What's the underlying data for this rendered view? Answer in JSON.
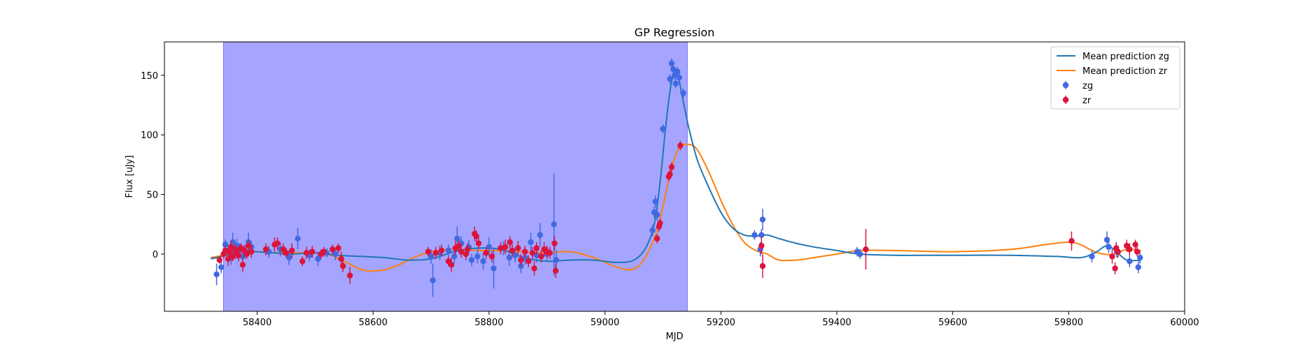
{
  "chart_data": {
    "type": "scatter",
    "title": "GP Regression",
    "xlabel": "MJD",
    "ylabel": "Flux [uJy]",
    "xlim": [
      58240,
      60000
    ],
    "ylim": [
      -48,
      178
    ],
    "xticks": [
      58400,
      58600,
      58800,
      59000,
      59200,
      59400,
      59600,
      59800,
      60000
    ],
    "xtick_labels": [
      "58400",
      "58600",
      "58800",
      "59000",
      "59200",
      "59400",
      "59600",
      "59800",
      "60000"
    ],
    "yticks": [
      0,
      50,
      100,
      150
    ],
    "ytick_labels": [
      "0",
      "50",
      "100",
      "150"
    ],
    "grid": false,
    "legend_position": "top-right",
    "shaded_region": {
      "x_start": 58342,
      "x_end": 59142,
      "color": "#a5a5ff",
      "edge_color": "#6b6bff"
    },
    "lines": [
      {
        "name": "Mean prediction zg",
        "color": "#1f77b4",
        "x": [
          58320,
          58340,
          58360,
          58380,
          58400,
          58430,
          58460,
          58500,
          58540,
          58580,
          58620,
          58660,
          58700,
          58740,
          58780,
          58820,
          58860,
          58900,
          58940,
          58980,
          59020,
          59050,
          59070,
          59085,
          59095,
          59105,
          59115,
          59125,
          59135,
          59145,
          59160,
          59180,
          59200,
          59220,
          59240,
          59260,
          59280,
          59300,
          59330,
          59360,
          59400,
          59440,
          59500,
          59560,
          59620,
          59700,
          59780,
          59820,
          59845,
          59865,
          59880,
          59900,
          59925
        ],
        "y": [
          -4,
          -2,
          1,
          3,
          2,
          1,
          0,
          1,
          -1,
          -2,
          -3,
          -5,
          -4,
          2,
          5,
          4,
          -3,
          -6,
          -5,
          -5,
          -7,
          -5,
          5,
          25,
          60,
          108,
          145,
          150,
          128,
          105,
          78,
          55,
          35,
          22,
          16,
          15,
          16,
          13,
          9,
          6,
          3,
          0,
          -1,
          -1,
          -1,
          -1,
          -2,
          -3,
          1,
          7,
          3,
          -5,
          -5
        ]
      },
      {
        "name": "Mean prediction zr",
        "color": "#ff7f0e",
        "x": [
          58320,
          58340,
          58360,
          58380,
          58400,
          58440,
          58480,
          58520,
          58550,
          58580,
          58610,
          58640,
          58670,
          58700,
          58740,
          58780,
          58820,
          58860,
          58900,
          58940,
          58980,
          59020,
          59045,
          59060,
          59075,
          59090,
          59100,
          59110,
          59120,
          59130,
          59145,
          59160,
          59180,
          59200,
          59220,
          59240,
          59260,
          59280,
          59300,
          59330,
          59360,
          59400,
          59440,
          59500,
          59600,
          59700,
          59760,
          59800,
          59820,
          59840,
          59860,
          59880,
          59900,
          59925
        ],
        "y": [
          -3,
          -1,
          2,
          3,
          2,
          1,
          1,
          0,
          -6,
          -13,
          -14,
          -10,
          -3,
          2,
          4,
          3,
          3,
          2,
          1,
          2,
          -3,
          -11,
          -13,
          -9,
          2,
          20,
          40,
          62,
          80,
          90,
          92,
          87,
          68,
          45,
          25,
          10,
          3,
          0,
          -5,
          -5,
          -3,
          0,
          3,
          3,
          2,
          4,
          8,
          10,
          8,
          3,
          0,
          0,
          4,
          3
        ]
      }
    ],
    "series": [
      {
        "name": "zg",
        "color": "#4169e1",
        "points": [
          [
            58330,
            -17,
            9
          ],
          [
            58338,
            -11,
            5
          ],
          [
            58345,
            8,
            4
          ],
          [
            58350,
            3,
            5
          ],
          [
            58355,
            -3,
            6
          ],
          [
            58358,
            10,
            8
          ],
          [
            58362,
            1,
            5
          ],
          [
            58365,
            7,
            6
          ],
          [
            58370,
            4,
            5
          ],
          [
            58375,
            -2,
            5
          ],
          [
            58380,
            2,
            5
          ],
          [
            58385,
            10,
            8
          ],
          [
            58390,
            6,
            5
          ],
          [
            58420,
            2,
            5
          ],
          [
            58440,
            4,
            6
          ],
          [
            58455,
            -3,
            6
          ],
          [
            58470,
            13,
            9
          ],
          [
            58490,
            -1,
            5
          ],
          [
            58505,
            -4,
            6
          ],
          [
            58520,
            1,
            4
          ],
          [
            58535,
            0,
            5
          ],
          [
            58700,
            -2,
            6
          ],
          [
            58703,
            -22,
            14
          ],
          [
            58715,
            1,
            6
          ],
          [
            58730,
            3,
            5
          ],
          [
            58740,
            -2,
            6
          ],
          [
            58745,
            13,
            10
          ],
          [
            58752,
            9,
            6
          ],
          [
            58765,
            6,
            6
          ],
          [
            58770,
            -5,
            5
          ],
          [
            58780,
            -2,
            6
          ],
          [
            58790,
            -6,
            7
          ],
          [
            58800,
            6,
            8
          ],
          [
            58808,
            -12,
            17
          ],
          [
            58825,
            5,
            6
          ],
          [
            58835,
            -3,
            7
          ],
          [
            58845,
            -1,
            6
          ],
          [
            58855,
            -10,
            6
          ],
          [
            58862,
            -3,
            6
          ],
          [
            58872,
            10,
            8
          ],
          [
            58882,
            -1,
            6
          ],
          [
            58888,
            16,
            10
          ],
          [
            58900,
            0,
            6
          ],
          [
            58912,
            25,
            43
          ],
          [
            58916,
            -5,
            8
          ],
          [
            59082,
            20,
            5
          ],
          [
            59085,
            35,
            5
          ],
          [
            59087,
            44,
            5
          ],
          [
            59090,
            33,
            5
          ],
          [
            59100,
            105,
            4
          ],
          [
            59112,
            147,
            4
          ],
          [
            59115,
            160,
            4
          ],
          [
            59118,
            155,
            4
          ],
          [
            59120,
            150,
            4
          ],
          [
            59122,
            143,
            4
          ],
          [
            59125,
            153,
            4
          ],
          [
            59128,
            148,
            4
          ],
          [
            59135,
            135,
            4
          ],
          [
            59258,
            16,
            4
          ],
          [
            59268,
            4,
            6
          ],
          [
            59270,
            16,
            5
          ],
          [
            59272,
            29,
            9
          ],
          [
            59435,
            2,
            4
          ],
          [
            59440,
            0,
            4
          ],
          [
            59840,
            -2,
            5
          ],
          [
            59866,
            12,
            7
          ],
          [
            59869,
            6,
            5
          ],
          [
            59883,
            2,
            5
          ],
          [
            59905,
            -6,
            5
          ],
          [
            59920,
            -11,
            5
          ],
          [
            59923,
            -3,
            5
          ]
        ]
      },
      {
        "name": "zr",
        "color": "#dc143c",
        "points": [
          [
            58335,
            -5,
            3
          ],
          [
            58342,
            0,
            4
          ],
          [
            58345,
            3,
            4
          ],
          [
            58350,
            -4,
            6
          ],
          [
            58352,
            2,
            4
          ],
          [
            58355,
            6,
            5
          ],
          [
            58358,
            -2,
            4
          ],
          [
            58362,
            4,
            4
          ],
          [
            58365,
            1,
            5
          ],
          [
            58368,
            -1,
            5
          ],
          [
            58372,
            5,
            4
          ],
          [
            58375,
            -9,
            6
          ],
          [
            58378,
            3,
            5
          ],
          [
            58382,
            0,
            4
          ],
          [
            58385,
            7,
            5
          ],
          [
            58390,
            2,
            5
          ],
          [
            58415,
            4,
            5
          ],
          [
            58430,
            8,
            6
          ],
          [
            58435,
            9,
            5
          ],
          [
            58445,
            4,
            5
          ],
          [
            58450,
            1,
            4
          ],
          [
            58460,
            3,
            6
          ],
          [
            58478,
            -6,
            4
          ],
          [
            58485,
            1,
            5
          ],
          [
            58495,
            2,
            5
          ],
          [
            58510,
            0,
            4
          ],
          [
            58515,
            2,
            4
          ],
          [
            58530,
            4,
            4
          ],
          [
            58540,
            5,
            4
          ],
          [
            58545,
            -4,
            6
          ],
          [
            58548,
            -10,
            5
          ],
          [
            58560,
            -18,
            7
          ],
          [
            58695,
            2,
            4
          ],
          [
            58708,
            1,
            5
          ],
          [
            58718,
            3,
            5
          ],
          [
            58730,
            -6,
            4
          ],
          [
            58735,
            -9,
            6
          ],
          [
            58742,
            5,
            6
          ],
          [
            58748,
            7,
            5
          ],
          [
            58752,
            2,
            5
          ],
          [
            58760,
            0,
            5
          ],
          [
            58763,
            4,
            5
          ],
          [
            58775,
            17,
            6
          ],
          [
            58778,
            15,
            5
          ],
          [
            58782,
            9,
            5
          ],
          [
            58795,
            1,
            5
          ],
          [
            58805,
            -2,
            5
          ],
          [
            58820,
            5,
            5
          ],
          [
            58828,
            6,
            6
          ],
          [
            58836,
            10,
            5
          ],
          [
            58840,
            3,
            5
          ],
          [
            58850,
            5,
            6
          ],
          [
            58855,
            -5,
            5
          ],
          [
            58862,
            2,
            5
          ],
          [
            58868,
            -6,
            5
          ],
          [
            58875,
            1,
            5
          ],
          [
            58878,
            -12,
            6
          ],
          [
            58882,
            5,
            5
          ],
          [
            58890,
            -2,
            5
          ],
          [
            58895,
            4,
            6
          ],
          [
            58900,
            2,
            5
          ],
          [
            58905,
            1,
            5
          ],
          [
            58913,
            9,
            6
          ],
          [
            58915,
            -14,
            6
          ],
          [
            59090,
            13,
            4
          ],
          [
            59093,
            23,
            4
          ],
          [
            59095,
            26,
            4
          ],
          [
            59110,
            65,
            4
          ],
          [
            59112,
            67,
            4
          ],
          [
            59115,
            73,
            4
          ],
          [
            59130,
            91,
            4
          ],
          [
            59270,
            7,
            7
          ],
          [
            59272,
            -10,
            10
          ],
          [
            59450,
            4,
            17
          ],
          [
            59805,
            11,
            8
          ],
          [
            59875,
            -2,
            6
          ],
          [
            59880,
            -12,
            5
          ],
          [
            59882,
            5,
            5
          ],
          [
            59885,
            2,
            5
          ],
          [
            59900,
            7,
            5
          ],
          [
            59905,
            4,
            5
          ],
          [
            59915,
            8,
            4
          ],
          [
            59918,
            2,
            4
          ]
        ]
      }
    ]
  }
}
